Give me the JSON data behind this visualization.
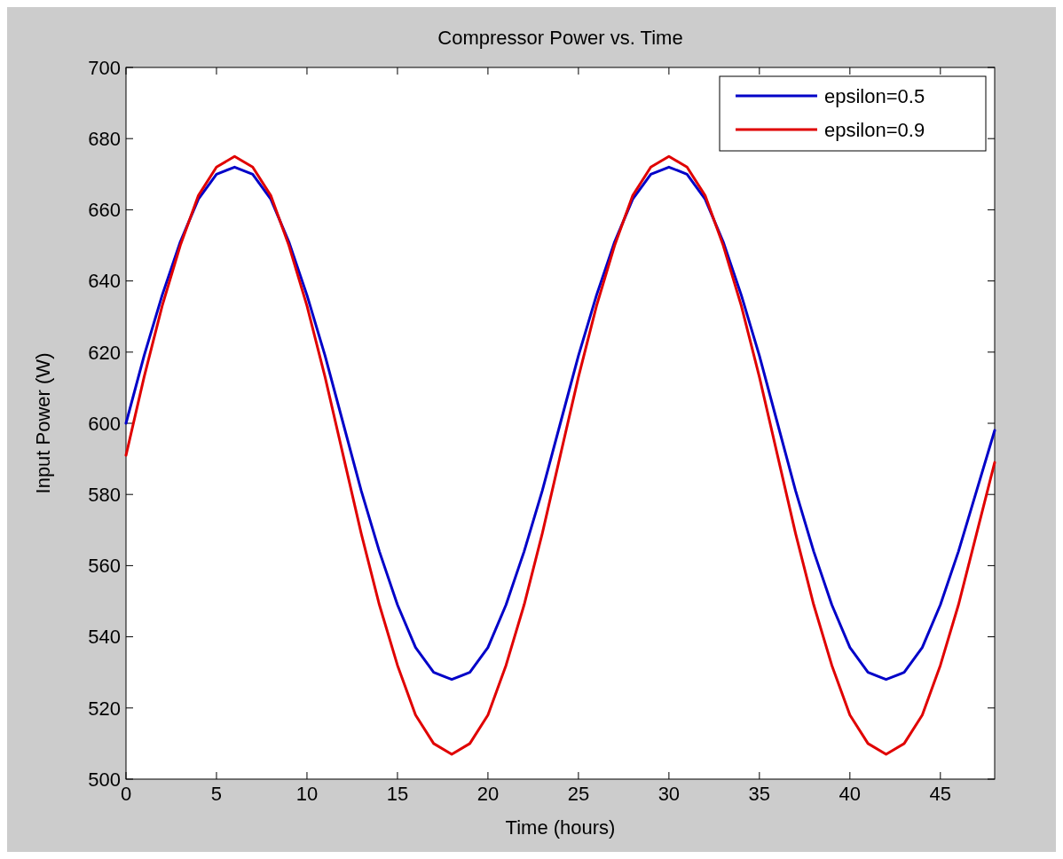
{
  "chart_data": {
    "type": "line",
    "title": "Compressor Power vs. Time",
    "xlabel": "Time (hours)",
    "ylabel": "Input Power (W)",
    "x": [
      0,
      1,
      2,
      3,
      4,
      5,
      6,
      7,
      8,
      9,
      10,
      11,
      12,
      13,
      14,
      15,
      16,
      17,
      18,
      19,
      20,
      21,
      22,
      23,
      24,
      25,
      26,
      27,
      28,
      29,
      30,
      31,
      32,
      33,
      34,
      35,
      36,
      37,
      38,
      39,
      40,
      41,
      42,
      43,
      44,
      45,
      46,
      47,
      48
    ],
    "series": [
      {
        "name": "epsilon=0.5",
        "color": "#0000c8",
        "values": [
          600,
          619,
          636,
          651,
          663,
          670,
          672,
          670,
          663,
          651,
          636,
          619,
          600,
          581,
          564,
          549,
          537,
          530,
          528,
          530,
          537,
          549,
          564,
          581,
          600,
          619,
          636,
          651,
          663,
          670,
          672,
          670,
          663,
          651,
          636,
          619,
          600,
          581,
          564,
          549,
          537,
          530,
          528,
          530,
          537,
          549,
          564,
          581,
          598
        ]
      },
      {
        "name": "epsilon=0.9",
        "color": "#e00000",
        "values": [
          591,
          613,
          633,
          650,
          664,
          672,
          675,
          672,
          664,
          650,
          633,
          613,
          591,
          569,
          549,
          532,
          518,
          510,
          507,
          510,
          518,
          532,
          549,
          569,
          591,
          613,
          633,
          650,
          664,
          672,
          675,
          672,
          664,
          650,
          633,
          613,
          591,
          569,
          549,
          532,
          518,
          510,
          507,
          510,
          518,
          532,
          549,
          569,
          589
        ]
      }
    ],
    "xlim": [
      0,
      48
    ],
    "xticks": [
      0,
      5,
      10,
      15,
      20,
      25,
      30,
      35,
      40,
      45
    ],
    "ylim": [
      500,
      700
    ],
    "yticks": [
      500,
      520,
      540,
      560,
      580,
      600,
      620,
      640,
      660,
      680,
      700
    ],
    "legend": "top right",
    "grid": false,
    "marker": "none",
    "line_style": "solid"
  }
}
